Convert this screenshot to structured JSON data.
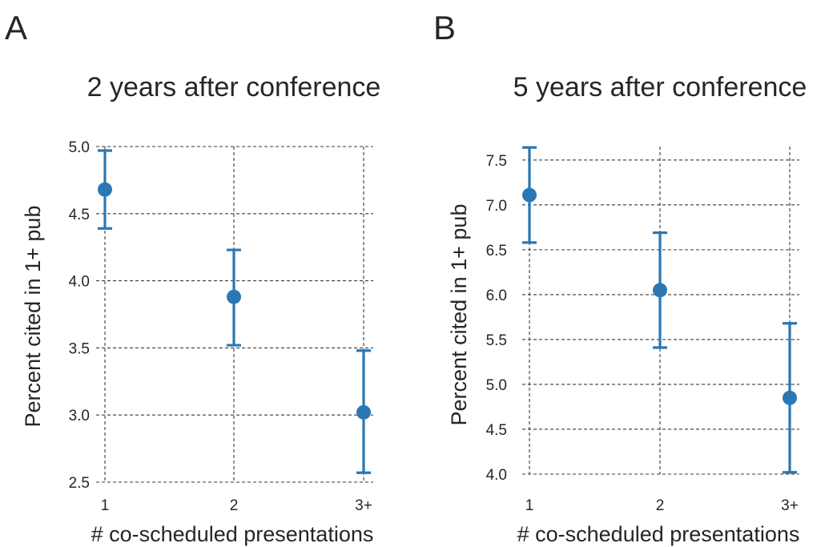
{
  "colors": {
    "series": "#2a77b4",
    "grid": "#3a3a3a",
    "text": "#262626"
  },
  "chart_data": [
    {
      "panel": "A",
      "type": "scatter",
      "title": "2 years after conference",
      "xlabel": "# co-scheduled presentations",
      "ylabel": "Percent cited in 1+ pub",
      "categories": [
        "1",
        "2",
        "3+"
      ],
      "values": [
        4.68,
        3.88,
        3.02
      ],
      "err_low": [
        4.39,
        3.52,
        2.57
      ],
      "err_high": [
        4.97,
        4.23,
        3.48
      ],
      "ylim": [
        2.5,
        5.0
      ],
      "yticks": [
        2.5,
        3.0,
        3.5,
        4.0,
        4.5,
        5.0
      ],
      "ytick_labels": [
        "2.5",
        "3.0",
        "3.5",
        "4.0",
        "4.5",
        "5.0"
      ],
      "grid": true,
      "legend": "none"
    },
    {
      "panel": "B",
      "type": "scatter",
      "title": "5 years after conference",
      "xlabel": "# co-scheduled presentations",
      "ylabel": "Percent cited in 1+ pub",
      "categories": [
        "1",
        "2",
        "3+"
      ],
      "values": [
        7.11,
        6.05,
        4.85
      ],
      "err_low": [
        6.58,
        5.41,
        4.02
      ],
      "err_high": [
        7.64,
        6.69,
        5.68
      ],
      "ylim": [
        4.0,
        7.65
      ],
      "yticks": [
        4.0,
        4.5,
        5.0,
        5.5,
        6.0,
        6.5,
        7.0,
        7.5
      ],
      "ytick_labels": [
        "4.0",
        "4.5",
        "5.0",
        "5.5",
        "6.0",
        "6.5",
        "7.0",
        "7.5"
      ],
      "grid": true,
      "legend": "none"
    }
  ]
}
